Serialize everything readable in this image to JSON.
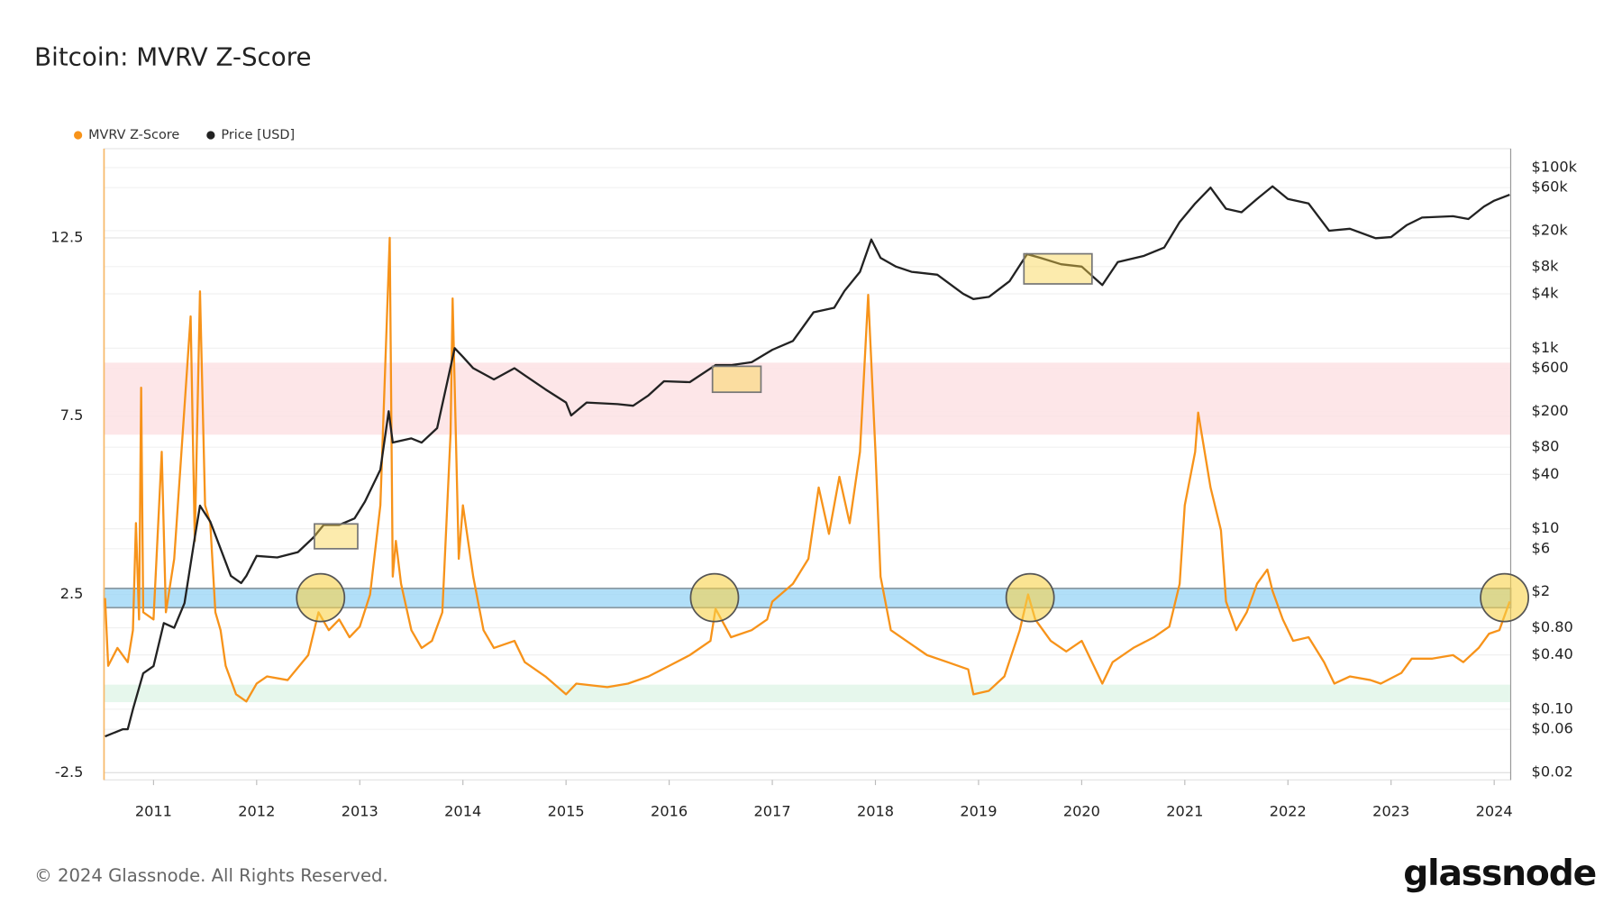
{
  "chart_data": {
    "type": "line",
    "title": "Bitcoin: MVRV Z-Score",
    "footer": "© 2024 Glassnode. All Rights Reserved.",
    "brand": "glassnode",
    "xlim": [
      2010.52,
      2024.16
    ],
    "xticks": [
      2011,
      2012,
      2013,
      2014,
      2015,
      2016,
      2017,
      2018,
      2019,
      2020,
      2021,
      2022,
      2023,
      2024
    ],
    "ylim": [
      -2.7,
      15
    ],
    "yticks": [
      -2.5,
      2.5,
      7.5,
      12.5
    ],
    "y2lim": [
      0.0165,
      162000
    ],
    "y2log": true,
    "y2ticks": [
      {
        "value": 100000,
        "label": "$100k"
      },
      {
        "value": 60000,
        "label": "$60k"
      },
      {
        "value": 20000,
        "label": "$20k"
      },
      {
        "value": 8000,
        "label": "$8k"
      },
      {
        "value": 4000,
        "label": "$4k"
      },
      {
        "value": 1000,
        "label": "$1k"
      },
      {
        "value": 600,
        "label": "$600"
      },
      {
        "value": 200,
        "label": "$200"
      },
      {
        "value": 80,
        "label": "$80"
      },
      {
        "value": 40,
        "label": "$40"
      },
      {
        "value": 10,
        "label": "$10"
      },
      {
        "value": 6,
        "label": "$6"
      },
      {
        "value": 2,
        "label": "$2"
      },
      {
        "value": 0.8,
        "label": "$0.80"
      },
      {
        "value": 0.4,
        "label": "$0.40"
      },
      {
        "value": 0.1,
        "label": "$0.10"
      },
      {
        "value": 0.06,
        "label": "$0.06"
      },
      {
        "value": 0.02,
        "label": "$0.02"
      }
    ],
    "grid": true,
    "legend": "top-left",
    "bands": [
      {
        "from": 6.98,
        "to": 9.0,
        "color": "#fde3e6"
      },
      {
        "from": 2.13,
        "to": 2.67,
        "color": "#a8dcf7"
      },
      {
        "from": -0.52,
        "to": -0.03,
        "color": "#e3f6ea"
      }
    ],
    "circles": [
      {
        "x": 2012.62,
        "y": 2.41
      },
      {
        "x": 2016.44,
        "y": 2.41
      },
      {
        "x": 2019.5,
        "y": 2.41
      },
      {
        "x": 2024.1,
        "y": 2.41
      }
    ],
    "boxes": [
      {
        "x": [
          2012.56,
          2012.98
        ],
        "y2": [
          6,
          11.3
        ]
      },
      {
        "x": [
          2016.42,
          2016.89
        ],
        "y2": [
          325,
          630
        ]
      },
      {
        "x": [
          2019.44,
          2020.1
        ],
        "y2": [
          5150,
          11100
        ]
      }
    ],
    "series": [
      {
        "name": "MVRV Z-Score",
        "color": "#f7931a",
        "axis": "y",
        "x": [
          2010.53,
          2010.56,
          2010.65,
          2010.75,
          2010.8,
          2010.83,
          2010.86,
          2010.88,
          2010.9,
          2011.0,
          2011.08,
          2011.12,
          2011.2,
          2011.36,
          2011.4,
          2011.45,
          2011.5,
          2011.55,
          2011.6,
          2011.65,
          2011.7,
          2011.8,
          2011.9,
          2012.0,
          2012.1,
          2012.3,
          2012.5,
          2012.6,
          2012.7,
          2012.8,
          2012.9,
          2013.0,
          2013.1,
          2013.2,
          2013.29,
          2013.32,
          2013.35,
          2013.4,
          2013.5,
          2013.6,
          2013.7,
          2013.8,
          2013.88,
          2013.9,
          2013.96,
          2014.0,
          2014.1,
          2014.2,
          2014.3,
          2014.5,
          2014.6,
          2014.8,
          2015.0,
          2015.1,
          2015.4,
          2015.6,
          2015.8,
          2016.0,
          2016.2,
          2016.4,
          2016.45,
          2016.6,
          2016.8,
          2016.95,
          2017.0,
          2017.2,
          2017.35,
          2017.45,
          2017.55,
          2017.65,
          2017.75,
          2017.85,
          2017.93,
          2018.0,
          2018.05,
          2018.15,
          2018.3,
          2018.5,
          2018.7,
          2018.9,
          2018.95,
          2019.1,
          2019.25,
          2019.4,
          2019.48,
          2019.55,
          2019.7,
          2019.85,
          2020.0,
          2020.2,
          2020.3,
          2020.5,
          2020.7,
          2020.85,
          2020.95,
          2021.0,
          2021.1,
          2021.13,
          2021.25,
          2021.35,
          2021.4,
          2021.5,
          2021.6,
          2021.7,
          2021.8,
          2021.85,
          2021.95,
          2022.05,
          2022.2,
          2022.35,
          2022.45,
          2022.6,
          2022.8,
          2022.9,
          2023.1,
          2023.2,
          2023.4,
          2023.6,
          2023.7,
          2023.85,
          2023.95,
          2024.05,
          2024.15
        ],
        "values": [
          2.4,
          0.5,
          1.0,
          0.6,
          1.5,
          4.5,
          1.8,
          8.3,
          2.0,
          1.8,
          6.5,
          2.0,
          3.5,
          10.3,
          4.0,
          11.0,
          5.0,
          4.5,
          2.0,
          1.5,
          0.5,
          -0.3,
          -0.5,
          0,
          0.2,
          0.1,
          0.8,
          2.0,
          1.5,
          1.8,
          1.3,
          1.6,
          2.5,
          5.0,
          12.5,
          3.0,
          4.0,
          2.8,
          1.5,
          1.0,
          1.2,
          2.0,
          7.0,
          10.8,
          3.5,
          5.0,
          3.0,
          1.5,
          1.0,
          1.2,
          0.6,
          0.2,
          -0.3,
          0,
          -0.1,
          0,
          0.2,
          0.5,
          0.8,
          1.2,
          2.1,
          1.3,
          1.5,
          1.8,
          2.3,
          2.8,
          3.5,
          5.5,
          4.2,
          5.8,
          4.5,
          6.5,
          10.9,
          6.5,
          3.0,
          1.5,
          1.2,
          0.8,
          0.6,
          0.4,
          -0.3,
          -0.2,
          0.2,
          1.5,
          2.5,
          1.8,
          1.2,
          0.9,
          1.2,
          0.0,
          0.6,
          1.0,
          1.3,
          1.6,
          2.8,
          5.0,
          6.5,
          7.6,
          5.5,
          4.3,
          2.3,
          1.5,
          2.0,
          2.8,
          3.2,
          2.6,
          1.8,
          1.2,
          1.3,
          0.6,
          0.0,
          0.2,
          0.1,
          0.0,
          0.3,
          0.7,
          0.7,
          0.8,
          0.6,
          1.0,
          1.4,
          1.5,
          2.3
        ]
      },
      {
        "name": "Price [USD]",
        "color": "#222222",
        "axis": "y2",
        "x": [
          2010.53,
          2010.7,
          2010.75,
          2010.8,
          2010.9,
          2011.0,
          2011.1,
          2011.2,
          2011.3,
          2011.4,
          2011.45,
          2011.55,
          2011.65,
          2011.75,
          2011.85,
          2011.9,
          2012.0,
          2012.2,
          2012.4,
          2012.55,
          2012.65,
          2012.8,
          2012.95,
          2013.05,
          2013.2,
          2013.28,
          2013.32,
          2013.5,
          2013.6,
          2013.75,
          2013.92,
          2014.0,
          2014.1,
          2014.3,
          2014.5,
          2014.6,
          2014.8,
          2015.0,
          2015.05,
          2015.2,
          2015.5,
          2015.65,
          2015.8,
          2015.95,
          2016.2,
          2016.45,
          2016.6,
          2016.8,
          2017.0,
          2017.2,
          2017.4,
          2017.6,
          2017.7,
          2017.85,
          2017.96,
          2018.05,
          2018.2,
          2018.35,
          2018.6,
          2018.85,
          2018.95,
          2019.1,
          2019.3,
          2019.47,
          2019.6,
          2019.8,
          2020.0,
          2020.2,
          2020.35,
          2020.6,
          2020.8,
          2020.95,
          2021.1,
          2021.25,
          2021.4,
          2021.55,
          2021.7,
          2021.85,
          2022.0,
          2022.2,
          2022.4,
          2022.6,
          2022.85,
          2023.0,
          2023.15,
          2023.3,
          2023.6,
          2023.75,
          2023.9,
          2024.0,
          2024.15
        ],
        "values": [
          0.05,
          0.06,
          0.06,
          0.1,
          0.25,
          0.3,
          0.9,
          0.8,
          1.5,
          8,
          18,
          12,
          6,
          3,
          2.5,
          3,
          5,
          4.8,
          5.5,
          8,
          11,
          11,
          13,
          20,
          45,
          200,
          90,
          100,
          90,
          130,
          1000,
          800,
          600,
          450,
          600,
          500,
          350,
          250,
          180,
          250,
          240,
          230,
          300,
          430,
          420,
          650,
          650,
          700,
          960,
          1200,
          2500,
          2800,
          4300,
          7000,
          16000,
          10000,
          8000,
          7000,
          6500,
          4000,
          3500,
          3700,
          5500,
          11000,
          10000,
          8500,
          8000,
          5000,
          9000,
          10500,
          13000,
          25000,
          40000,
          60000,
          35000,
          32000,
          45000,
          62000,
          45000,
          40000,
          20000,
          21000,
          16500,
          17000,
          23000,
          28000,
          29000,
          27000,
          37000,
          43000,
          50000
        ]
      }
    ]
  }
}
